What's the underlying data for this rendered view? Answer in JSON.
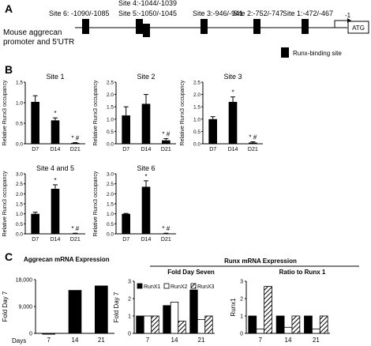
{
  "panel_a": {
    "letter": "A",
    "caption_line1": "Mouse aggrecan",
    "caption_line2": "promoter and 5'UTR",
    "sites": [
      {
        "label": "Site 6: -1090/-1085"
      },
      {
        "label": "Site 4:-1044/-1039"
      },
      {
        "label": "Site 5:-1050/-1045"
      },
      {
        "label": "Site 3:-946/-941"
      },
      {
        "label": "Site 2:-752/-747"
      },
      {
        "label": "Site 1:-472/-467"
      }
    ],
    "start_label": "-1",
    "atg_label": "ATG",
    "legend_label": "Runx-binding site"
  },
  "panel_b": {
    "letter": "B",
    "ylabel": "Relative Runx3 occupancy"
  },
  "panel_c": {
    "letter": "C",
    "left_header": "Aggrecan   mRNA  Expression",
    "right_header": "Runx  mRNA Expression",
    "sub_header_1": "Fold Day Seven",
    "sub_header_2": "Ratio to Runx 1",
    "days_label": "Days"
  },
  "chart_data": [
    {
      "type": "bar",
      "title": "Site 1",
      "ylabel": "Relative Runx3 occupancy",
      "categories": [
        "D7",
        "D14",
        "D21"
      ],
      "values": [
        1.02,
        0.57,
        0.02
      ],
      "errors": [
        0.15,
        0.06,
        0.01
      ],
      "annotations": [
        "",
        "*",
        "* #"
      ],
      "ylim": [
        0,
        1.5
      ],
      "yticks": [
        "0.0",
        "0.5",
        "1.0",
        "1.5"
      ]
    },
    {
      "type": "bar",
      "title": "Site 2",
      "ylabel": "Relative Runx3 occupancy",
      "categories": [
        "D7",
        "D14",
        "D21"
      ],
      "values": [
        1.15,
        1.62,
        0.14
      ],
      "errors": [
        0.35,
        0.38,
        0.07
      ],
      "annotations": [
        "",
        "",
        "* #"
      ],
      "ylim": [
        0,
        2.5
      ],
      "yticks": [
        "0.0",
        "0.5",
        "1.0",
        "1.5",
        "2.0",
        "2.5"
      ]
    },
    {
      "type": "bar",
      "title": "Site 3",
      "ylabel": "Relative Runx3 occupancy",
      "categories": [
        "D7",
        "D14",
        "D21"
      ],
      "values": [
        1.0,
        1.7,
        0.05
      ],
      "errors": [
        0.1,
        0.2,
        0.03
      ],
      "annotations": [
        "",
        "*",
        "* #"
      ],
      "ylim": [
        0,
        2.5
      ],
      "yticks": [
        "0.0",
        "0.5",
        "1.0",
        "1.5",
        "2.0",
        "2.5"
      ]
    },
    {
      "type": "bar",
      "title": "Site 4 and 5",
      "ylabel": "Relative Runx3 occupancy",
      "categories": [
        "D7",
        "D14",
        "D21"
      ],
      "values": [
        1.0,
        2.25,
        0.02
      ],
      "errors": [
        0.08,
        0.2,
        0.01
      ],
      "annotations": [
        "",
        "*",
        "* #"
      ],
      "ylim": [
        0,
        3.0
      ],
      "yticks": [
        "0.0",
        "0.5",
        "1.0",
        "1.5",
        "2.0",
        "2.5",
        "3.0"
      ]
    },
    {
      "type": "bar",
      "title": "Site 6",
      "ylabel": "Relative Runx3 occupancy",
      "categories": [
        "D7",
        "D14",
        "D21"
      ],
      "values": [
        1.0,
        2.35,
        0.02
      ],
      "errors": [
        0.02,
        0.3,
        0.01
      ],
      "annotations": [
        "",
        "*",
        "* #"
      ],
      "ylim": [
        0,
        3.0
      ],
      "yticks": [
        "0.0",
        "0.5",
        "1.0",
        "1.5",
        "2.0",
        "2.5",
        "3.0"
      ]
    },
    {
      "type": "bar",
      "title": "",
      "ylabel": "Fold Day 7",
      "xlabel": "Days",
      "categories": [
        "7",
        "14",
        "21"
      ],
      "values": [
        1,
        14500,
        16000
      ],
      "ylim": [
        0,
        18000
      ],
      "yticks": [
        "0",
        "9,000",
        "18,000"
      ]
    },
    {
      "type": "bar",
      "title": "Fold Day Seven",
      "ylabel": "Fold Day 7",
      "categories": [
        "7",
        "14",
        "21"
      ],
      "series": [
        {
          "name": "RunX1",
          "values": [
            1,
            1.6,
            2.5
          ]
        },
        {
          "name": "RunX2",
          "values": [
            1,
            1.8,
            0.8
          ]
        },
        {
          "name": "RunX3",
          "values": [
            1,
            0.7,
            1.0
          ]
        }
      ],
      "ylim": [
        0,
        3
      ],
      "yticks": [
        "0",
        "1",
        "2",
        "3"
      ]
    },
    {
      "type": "bar",
      "title": "Ratio to Runx 1",
      "ylabel": "Runx1",
      "categories": [
        "7",
        "14",
        "21"
      ],
      "series": [
        {
          "name": "RunX1",
          "values": [
            1,
            1,
            1
          ]
        },
        {
          "name": "RunX2",
          "values": [
            0.25,
            0.35,
            0.25
          ]
        },
        {
          "name": "RunX3",
          "values": [
            2.7,
            1.0,
            1.0
          ]
        }
      ],
      "ylim": [
        0,
        3
      ],
      "yticks": [
        "0",
        "1",
        "2",
        "3"
      ]
    }
  ],
  "colors": {
    "bar": "#000000",
    "white": "#ffffff",
    "hatch": "#000000"
  }
}
